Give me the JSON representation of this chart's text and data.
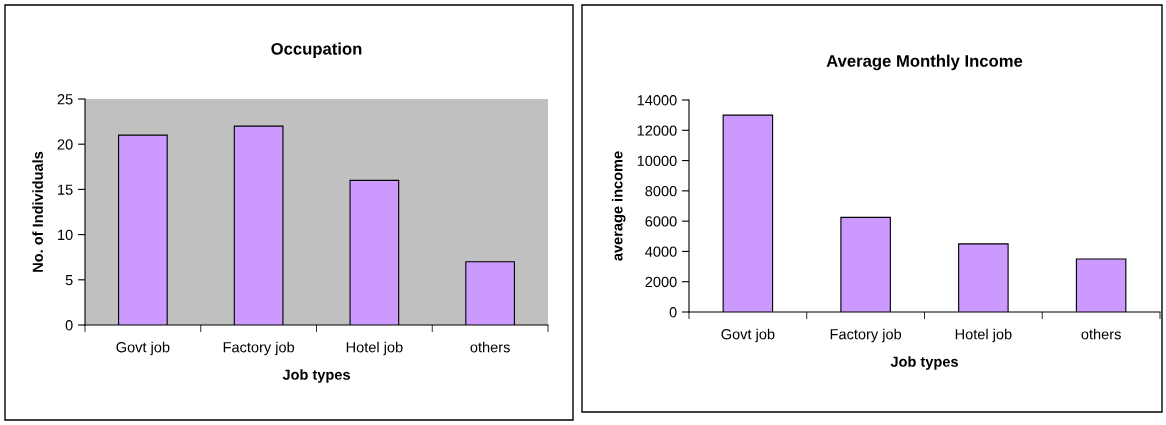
{
  "chart_data": [
    {
      "type": "bar",
      "title": "Occupation",
      "xlabel": "Job types",
      "ylabel": "No. of Individuals",
      "categories": [
        "Govt job",
        "Factory job",
        "Hotel job",
        "others"
      ],
      "values": [
        21,
        22,
        16,
        7
      ],
      "color": "#cc99ff",
      "ylim": [
        0,
        25
      ],
      "yticks": [
        0,
        5,
        10,
        15,
        20,
        25
      ],
      "grid": false,
      "legend": false
    },
    {
      "type": "bar",
      "title": "Average Monthly Income",
      "xlabel": "Job types",
      "ylabel": "average income",
      "categories": [
        "Govt job",
        "Factory job",
        "Hotel job",
        "others"
      ],
      "values": [
        13000,
        6250,
        4500,
        3500
      ],
      "color": "#cc99ff",
      "ylim": [
        0,
        14000
      ],
      "yticks": [
        0,
        2000,
        4000,
        6000,
        8000,
        10000,
        12000,
        14000
      ],
      "grid": false,
      "legend": false
    }
  ]
}
